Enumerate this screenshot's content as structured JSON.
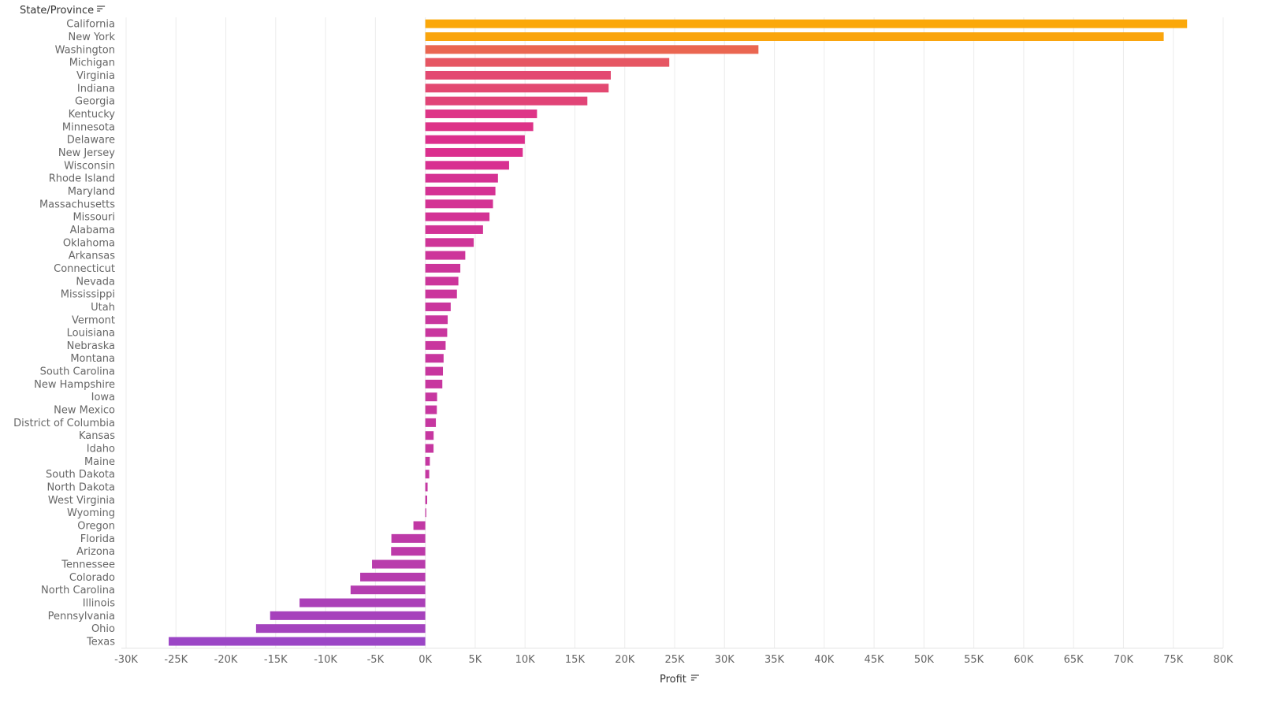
{
  "chart_data": {
    "type": "bar",
    "orientation": "horizontal",
    "row_header": "State/Province",
    "xlabel": "Profit",
    "xlim": [
      -30000,
      80000
    ],
    "x_ticks": [
      -30000,
      -25000,
      -20000,
      -15000,
      -10000,
      -5000,
      0,
      5000,
      10000,
      15000,
      20000,
      25000,
      30000,
      35000,
      40000,
      45000,
      50000,
      55000,
      60000,
      65000,
      70000,
      75000,
      80000
    ],
    "x_tick_labels": [
      "-30K",
      "-25K",
      "-20K",
      "-15K",
      "-10K",
      "-5K",
      "0K",
      "5K",
      "10K",
      "15K",
      "20K",
      "25K",
      "30K",
      "35K",
      "40K",
      "45K",
      "50K",
      "55K",
      "60K",
      "65K",
      "70K",
      "75K",
      "80K"
    ],
    "grid": "vertical",
    "sort": "descending by Profit",
    "color_scale": {
      "min_color": "#9b46c6",
      "mid_color": "#dc2f8d",
      "max_color": "#fba80a",
      "mid_value": 10000
    },
    "categories": [
      "California",
      "New York",
      "Washington",
      "Michigan",
      "Virginia",
      "Indiana",
      "Georgia",
      "Kentucky",
      "Minnesota",
      "Delaware",
      "New Jersey",
      "Wisconsin",
      "Rhode Island",
      "Maryland",
      "Massachusetts",
      "Missouri",
      "Alabama",
      "Oklahoma",
      "Arkansas",
      "Connecticut",
      "Nevada",
      "Mississippi",
      "Utah",
      "Vermont",
      "Louisiana",
      "Nebraska",
      "Montana",
      "South Carolina",
      "New Hampshire",
      "Iowa",
      "New Mexico",
      "District of Columbia",
      "Kansas",
      "Idaho",
      "Maine",
      "South Dakota",
      "North Dakota",
      "West Virginia",
      "Wyoming",
      "Oregon",
      "Florida",
      "Arizona",
      "Tennessee",
      "Colorado",
      "North Carolina",
      "Illinois",
      "Pennsylvania",
      "Ohio",
      "Texas"
    ],
    "values": [
      76381,
      74039,
      33403,
      24463,
      18598,
      18383,
      16250,
      11200,
      10823,
      9977,
      9773,
      8402,
      7286,
      7031,
      6786,
      6436,
      5787,
      4854,
      4009,
      3511,
      3317,
      3172,
      2547,
      2245,
      2196,
      2037,
      1834,
      1769,
      1707,
      1183,
      1157,
      1060,
      836,
      827,
      455,
      394,
      230,
      186,
      100,
      -1190,
      -3399,
      -3428,
      -5342,
      -6528,
      -7491,
      -12608,
      -15560,
      -16971,
      -25729
    ]
  }
}
